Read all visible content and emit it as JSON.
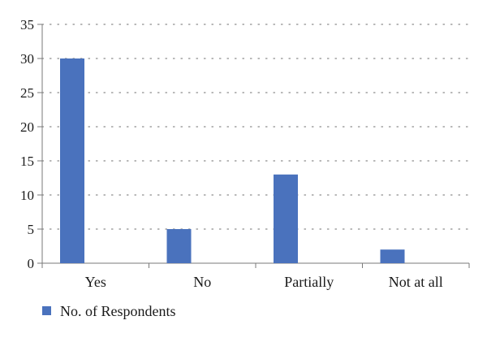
{
  "chart_data": {
    "type": "bar",
    "title": "",
    "xlabel": "",
    "ylabel": "",
    "categories": [
      "Yes",
      "No",
      "Partially",
      "Not at all"
    ],
    "series": [
      {
        "name": "No. of Respondents",
        "values": [
          30,
          5,
          13,
          2
        ],
        "color": "#4a72bd"
      }
    ],
    "ylim": [
      0,
      35
    ],
    "yticks": [
      0,
      5,
      10,
      15,
      20,
      25,
      30,
      35
    ],
    "grid": "horizontal-dotted",
    "legend_position": "bottom-left"
  }
}
